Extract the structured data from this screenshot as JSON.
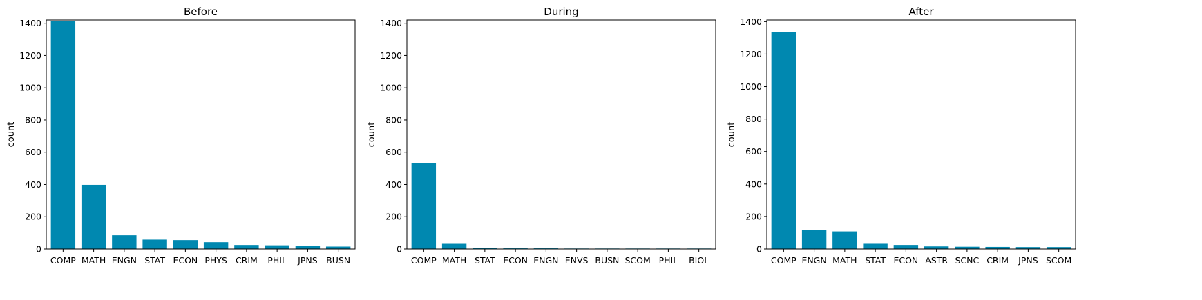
{
  "bar_color": "#0088b0",
  "chart_data": [
    {
      "type": "bar",
      "title": "Before",
      "ylabel": "count",
      "xlabel": "",
      "ylim": [
        0,
        1420
      ],
      "yticks": [
        0,
        200,
        400,
        600,
        800,
        1000,
        1200,
        1400
      ],
      "categories": [
        "COMP",
        "MATH",
        "ENGN",
        "STAT",
        "ECON",
        "PHYS",
        "CRIM",
        "PHIL",
        "JPNS",
        "BUSN"
      ],
      "values": [
        1415,
        398,
        85,
        58,
        55,
        42,
        25,
        23,
        20,
        15
      ]
    },
    {
      "type": "bar",
      "title": "During",
      "ylabel": "count",
      "xlabel": "",
      "ylim": [
        0,
        1420
      ],
      "yticks": [
        0,
        200,
        400,
        600,
        800,
        1000,
        1200,
        1400
      ],
      "categories": [
        "COMP",
        "MATH",
        "STAT",
        "ECON",
        "ENGN",
        "ENVS",
        "BUSN",
        "SCOM",
        "PHIL",
        "BIOL"
      ],
      "values": [
        532,
        32,
        5,
        4,
        4,
        3,
        3,
        3,
        3,
        3
      ]
    },
    {
      "type": "bar",
      "title": "After",
      "ylabel": "count",
      "xlabel": "",
      "ylim": [
        0,
        1410
      ],
      "yticks": [
        0,
        200,
        400,
        600,
        800,
        1000,
        1200,
        1400
      ],
      "categories": [
        "COMP",
        "ENGN",
        "MATH",
        "STAT",
        "ECON",
        "ASTR",
        "SCNC",
        "CRIM",
        "JPNS",
        "SCOM"
      ],
      "values": [
        1335,
        118,
        108,
        32,
        25,
        16,
        14,
        13,
        12,
        12
      ]
    }
  ]
}
